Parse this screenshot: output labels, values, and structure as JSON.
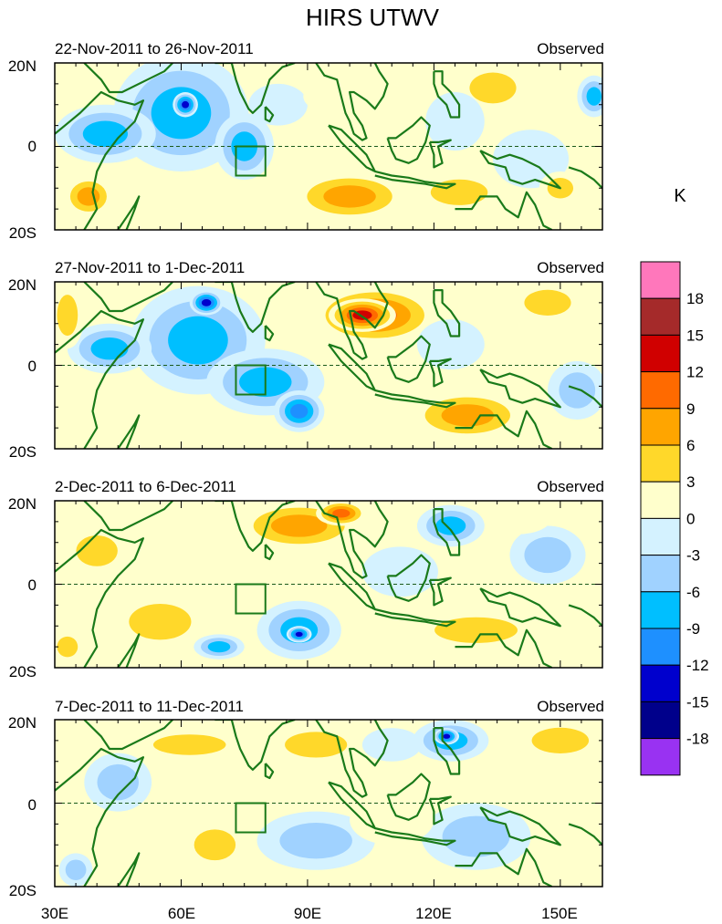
{
  "chart_data": {
    "type": "heatmap",
    "title": "HIRS UTWV",
    "units": "K",
    "x_ticks": [
      "30E",
      "60E",
      "90E",
      "120E",
      "150E"
    ],
    "x_tick_values": [
      30,
      60,
      90,
      120,
      150
    ],
    "xlim": [
      30,
      160
    ],
    "ylim": [
      -20,
      20
    ],
    "y_ticks": [
      "20N",
      "0",
      "20S"
    ],
    "y_tick_values": [
      20,
      0,
      -20
    ],
    "box_region": {
      "lon": [
        73,
        80
      ],
      "lat": [
        -7,
        0
      ]
    },
    "colorbar": {
      "labels": [
        "18",
        "15",
        "12",
        "9",
        "6",
        "3",
        "0",
        "-3",
        "-6",
        "-9",
        "-12",
        "-15",
        "-18"
      ],
      "colors": [
        "#ff77bb",
        "#a52a2a",
        "#d00000",
        "#ff6a00",
        "#ffa500",
        "#ffd82a",
        "#ffffcc",
        "#d4f2ff",
        "#a0d2ff",
        "#00bfff",
        "#1e90ff",
        "#0000cd",
        "#00008b",
        "#9932f2"
      ]
    },
    "panels": [
      {
        "period": "22-Nov-2011 to 26-Nov-2011",
        "label": "Observed",
        "features": [
          {
            "lon": 60,
            "lat": 8,
            "rx": 16,
            "ry": 14,
            "v": -9
          },
          {
            "lon": 61,
            "lat": 10,
            "rx": 3,
            "ry": 3,
            "v": -15
          },
          {
            "lon": 42,
            "lat": 3,
            "rx": 12,
            "ry": 7,
            "v": -7
          },
          {
            "lon": 75,
            "lat": 0,
            "rx": 7,
            "ry": 8,
            "v": -8
          },
          {
            "lon": 100,
            "lat": -12,
            "rx": 14,
            "ry": 6,
            "v": 7
          },
          {
            "lon": 126,
            "lat": -11,
            "rx": 11,
            "ry": 5,
            "v": 5
          },
          {
            "lon": 134,
            "lat": 14,
            "rx": 9,
            "ry": 6,
            "v": 5
          },
          {
            "lon": 96,
            "lat": 12,
            "rx": 7,
            "ry": 4,
            "v": 3
          },
          {
            "lon": 38,
            "lat": -12,
            "rx": 6,
            "ry": 5,
            "v": 7
          },
          {
            "lon": 125,
            "lat": 6,
            "rx": 7,
            "ry": 7,
            "v": -3
          },
          {
            "lon": 143,
            "lat": -3,
            "rx": 9,
            "ry": 7,
            "v": -3
          },
          {
            "lon": 150,
            "lat": -10,
            "rx": 5,
            "ry": 4,
            "v": 5
          },
          {
            "lon": 158,
            "lat": 12,
            "rx": 4,
            "ry": 5,
            "v": -8
          },
          {
            "lon": 83,
            "lat": 10,
            "rx": 7,
            "ry": 5,
            "v": -3
          }
        ]
      },
      {
        "period": "27-Nov-2011 to 1-Dec-2011",
        "label": "Observed",
        "features": [
          {
            "lon": 106,
            "lat": 12,
            "rx": 15,
            "ry": 7,
            "v": 12
          },
          {
            "lon": 103,
            "lat": 12,
            "rx": 8,
            "ry": 4,
            "v": 15
          },
          {
            "lon": 64,
            "lat": 6,
            "rx": 16,
            "ry": 13,
            "v": -9
          },
          {
            "lon": 66,
            "lat": 15,
            "rx": 4,
            "ry": 3,
            "v": -15
          },
          {
            "lon": 80,
            "lat": -4,
            "rx": 14,
            "ry": 8,
            "v": -8
          },
          {
            "lon": 88,
            "lat": -11,
            "rx": 6,
            "ry": 5,
            "v": -11
          },
          {
            "lon": 128,
            "lat": -12,
            "rx": 14,
            "ry": 6,
            "v": 9
          },
          {
            "lon": 147,
            "lat": 15,
            "rx": 9,
            "ry": 5,
            "v": 5
          },
          {
            "lon": 43,
            "lat": 4,
            "rx": 10,
            "ry": 6,
            "v": -7
          },
          {
            "lon": 33,
            "lat": 12,
            "rx": 4,
            "ry": 8,
            "v": 5
          },
          {
            "lon": 124,
            "lat": 5,
            "rx": 8,
            "ry": 6,
            "v": -3
          },
          {
            "lon": 154,
            "lat": -6,
            "rx": 7,
            "ry": 7,
            "v": -4
          }
        ]
      },
      {
        "period": "2-Dec-2011 to 6-Dec-2011",
        "label": "Observed",
        "features": [
          {
            "lon": 88,
            "lat": 14,
            "rx": 15,
            "ry": 6,
            "v": 8
          },
          {
            "lon": 98,
            "lat": 17,
            "rx": 6,
            "ry": 3,
            "v": 10
          },
          {
            "lon": 55,
            "lat": -9,
            "rx": 12,
            "ry": 7,
            "v": 6
          },
          {
            "lon": 88,
            "lat": -11,
            "rx": 10,
            "ry": 7,
            "v": -7
          },
          {
            "lon": 88,
            "lat": -12,
            "rx": 3,
            "ry": 2,
            "v": -13
          },
          {
            "lon": 69,
            "lat": -15,
            "rx": 6,
            "ry": 3,
            "v": -7
          },
          {
            "lon": 130,
            "lat": -11,
            "rx": 16,
            "ry": 5,
            "v": 6
          },
          {
            "lon": 124,
            "lat": 14,
            "rx": 8,
            "ry": 5,
            "v": -8
          },
          {
            "lon": 147,
            "lat": 7,
            "rx": 9,
            "ry": 7,
            "v": -4
          },
          {
            "lon": 40,
            "lat": 8,
            "rx": 8,
            "ry": 6,
            "v": 4
          },
          {
            "lon": 33,
            "lat": -15,
            "rx": 4,
            "ry": 4,
            "v": 5
          },
          {
            "lon": 140,
            "lat": 16,
            "rx": 8,
            "ry": 4,
            "v": 3
          },
          {
            "lon": 112,
            "lat": 3,
            "rx": 9,
            "ry": 6,
            "v": -3
          }
        ]
      },
      {
        "period": "7-Dec-2011 to 11-Dec-2011",
        "label": "Observed",
        "features": [
          {
            "lon": 124,
            "lat": 15,
            "rx": 9,
            "ry": 5,
            "v": -9
          },
          {
            "lon": 123,
            "lat": 16,
            "rx": 3,
            "ry": 2,
            "v": -14
          },
          {
            "lon": 68,
            "lat": -10,
            "rx": 8,
            "ry": 6,
            "v": 6
          },
          {
            "lon": 62,
            "lat": 14,
            "rx": 14,
            "ry": 4,
            "v": 5
          },
          {
            "lon": 92,
            "lat": 14,
            "rx": 12,
            "ry": 5,
            "v": 4
          },
          {
            "lon": 150,
            "lat": 15,
            "rx": 11,
            "ry": 5,
            "v": 5
          },
          {
            "lon": 92,
            "lat": -9,
            "rx": 14,
            "ry": 7,
            "v": -5
          },
          {
            "lon": 45,
            "lat": 5,
            "rx": 8,
            "ry": 7,
            "v": -4
          },
          {
            "lon": 130,
            "lat": -8,
            "rx": 13,
            "ry": 8,
            "v": -4
          },
          {
            "lon": 110,
            "lat": -4,
            "rx": 10,
            "ry": 6,
            "v": 3
          },
          {
            "lon": 110,
            "lat": 14,
            "rx": 7,
            "ry": 4,
            "v": -3
          },
          {
            "lon": 35,
            "lat": -16,
            "rx": 4,
            "ry": 4,
            "v": -4
          }
        ]
      }
    ]
  }
}
